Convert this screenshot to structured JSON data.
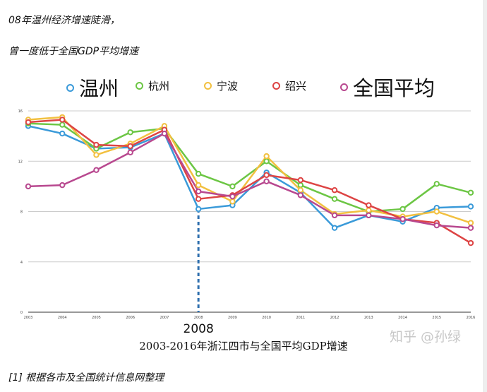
{
  "intro": {
    "line1": "08年温州经济增速陡滑，",
    "line2": "曾一度低于全国GDP平均增速"
  },
  "footnote": "[1] 根据各市及全国统计信息网整理",
  "watermark": "知乎 @孙绿",
  "chart_data": {
    "type": "line",
    "title": "2003-2016年浙江四市与全国平均GDP增速",
    "xlabel": "",
    "ylabel": "",
    "x": [
      "2003",
      "2004",
      "2005",
      "2006",
      "2007",
      "2008",
      "2009",
      "2010",
      "2011",
      "2012",
      "2013",
      "2014",
      "2015",
      "2016"
    ],
    "ylim": [
      0,
      16
    ],
    "yticks": [
      "0",
      "4",
      "8",
      "12",
      "16"
    ],
    "grid": true,
    "legend_position": "top",
    "annotation": {
      "label": "2008",
      "x": "2008"
    },
    "series": [
      {
        "name": "温州",
        "color": "#3a9ad9",
        "values": [
          14.8,
          14.2,
          13.0,
          13.1,
          14.2,
          8.2,
          8.5,
          11.1,
          9.5,
          6.7,
          7.7,
          7.2,
          8.3,
          8.4
        ]
      },
      {
        "name": "杭州",
        "color": "#6cc644",
        "values": [
          15.0,
          14.9,
          13.0,
          14.3,
          14.6,
          11.0,
          10.0,
          12.0,
          10.1,
          9.0,
          8.0,
          8.2,
          10.2,
          9.5
        ]
      },
      {
        "name": "宁波",
        "color": "#f2c040",
        "values": [
          15.3,
          15.5,
          12.5,
          13.4,
          14.8,
          10.1,
          8.8,
          12.4,
          9.7,
          7.8,
          8.1,
          7.6,
          8.0,
          7.1
        ]
      },
      {
        "name": "绍兴",
        "color": "#dd4444",
        "values": [
          15.1,
          15.3,
          13.3,
          13.2,
          14.5,
          9.0,
          9.3,
          10.9,
          10.5,
          9.7,
          8.5,
          7.4,
          7.1,
          5.5
        ]
      },
      {
        "name": "全国平均",
        "color": "#b8488f",
        "values": [
          10.0,
          10.1,
          11.3,
          12.7,
          14.2,
          9.6,
          9.2,
          10.4,
          9.3,
          7.7,
          7.7,
          7.4,
          6.9,
          6.7
        ]
      }
    ]
  }
}
